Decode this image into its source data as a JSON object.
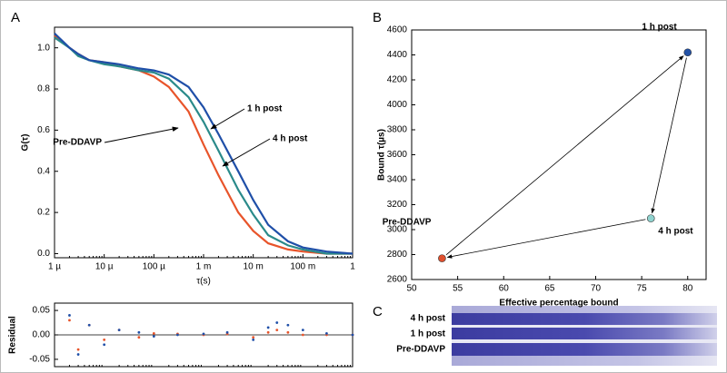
{
  "chart_data": [
    {
      "type": "line",
      "panel_label": "A",
      "ylabel": "G(τ)",
      "xlabel": "τ(s)",
      "log_x": true,
      "x": [
        1e-06,
        2e-06,
        3e-06,
        5e-06,
        1e-05,
        2e-05,
        5e-05,
        0.0001,
        0.0002,
        0.0005,
        0.001,
        0.002,
        0.005,
        0.01,
        0.02,
        0.05,
        0.1,
        0.3,
        1
      ],
      "xlim": [
        1e-06,
        1
      ],
      "xticks": [
        {
          "value": 1e-06,
          "label": "1 µ"
        },
        {
          "value": 1e-05,
          "label": "10 µ"
        },
        {
          "value": 0.0001,
          "label": "100 µ"
        },
        {
          "value": 0.001,
          "label": "1 m"
        },
        {
          "value": 0.01,
          "label": "10 m"
        },
        {
          "value": 0.1,
          "label": "100 m"
        },
        1
      ],
      "ylim": [
        -0.02,
        1.1
      ],
      "yticks": [
        {
          "value": 0,
          "label": "0.0"
        },
        {
          "value": 0.2,
          "label": "0.2"
        },
        {
          "value": 0.4,
          "label": "0.4"
        },
        {
          "value": 0.6,
          "label": "0.6"
        },
        {
          "value": 0.8,
          "label": "0.8"
        },
        {
          "value": 1,
          "label": "1.0"
        }
      ],
      "series": [
        {
          "name": "Pre-DDAVP",
          "color": "#e8542a",
          "values": [
            1.06,
            1.0,
            0.97,
            0.94,
            0.93,
            0.91,
            0.89,
            0.86,
            0.81,
            0.69,
            0.53,
            0.38,
            0.2,
            0.11,
            0.05,
            0.02,
            0.01,
            0.0,
            0.0
          ]
        },
        {
          "name": "4 h post",
          "color": "#2a8a8a",
          "values": [
            1.05,
            1.0,
            0.96,
            0.94,
            0.92,
            0.91,
            0.89,
            0.88,
            0.85,
            0.76,
            0.64,
            0.5,
            0.31,
            0.19,
            0.09,
            0.04,
            0.02,
            0.0,
            0.0
          ]
        },
        {
          "name": "1 h post",
          "color": "#1f4fa8",
          "values": [
            1.07,
            1.0,
            0.97,
            0.94,
            0.93,
            0.92,
            0.9,
            0.89,
            0.87,
            0.81,
            0.71,
            0.58,
            0.4,
            0.26,
            0.14,
            0.06,
            0.03,
            0.01,
            0.0
          ]
        }
      ]
    },
    {
      "type": "scatter",
      "ylabel": "Residual",
      "log_x": true,
      "x": [
        2e-06,
        3e-06,
        5e-06,
        1e-05,
        2e-05,
        5e-05,
        0.0001,
        0.0003,
        0.001,
        0.003,
        0.01,
        0.02,
        0.03,
        0.05,
        0.1,
        0.3,
        1
      ],
      "xlim": [
        1e-06,
        1
      ],
      "ylim": [
        -0.065,
        0.065
      ],
      "yticks": [
        0.05,
        {
          "value": 0,
          "label": "0.00"
        },
        -0.05
      ],
      "series": [
        {
          "color": "#e8542a",
          "values": [
            0.03,
            -0.03,
            0.02,
            -0.01,
            0.01,
            -0.005,
            0.003,
            0.002,
            0,
            0.002,
            -0.005,
            0.005,
            0.01,
            0.005,
            0,
            0,
            0
          ]
        },
        {
          "color": "#1f4fa8",
          "values": [
            0.04,
            -0.04,
            0.02,
            -0.02,
            0.01,
            0.005,
            -0.003,
            0,
            0.002,
            0.005,
            -0.01,
            0.015,
            0.025,
            0.02,
            0.01,
            0.003,
            0
          ]
        }
      ]
    },
    {
      "type": "scatter",
      "panel_label": "B",
      "xlabel": "Effective percentage bound",
      "ylabel": "Bound τ(µs)",
      "xlim": [
        50,
        82
      ],
      "xticks": [
        50,
        55,
        60,
        65,
        70,
        75,
        80
      ],
      "ylim": [
        2600,
        4600
      ],
      "yticks": [
        2600,
        2800,
        3000,
        3200,
        3400,
        3600,
        3800,
        4000,
        4200,
        4400,
        4600
      ],
      "series": [
        {
          "name": "Pre-DDAVP",
          "color": "#e0502e",
          "x": [
            53.3
          ],
          "values": [
            2770
          ]
        },
        {
          "name": "1 h post",
          "color": "#2352a6",
          "x": [
            80
          ],
          "values": [
            4420
          ]
        },
        {
          "name": "4 h post",
          "color": "#8fd3cf",
          "x": [
            76
          ],
          "values": [
            3090
          ]
        }
      ]
    }
  ],
  "gel": {
    "panel_label": "C",
    "lanes": [
      "4 h post",
      "1 h post",
      "Pre-DDAVP"
    ]
  }
}
